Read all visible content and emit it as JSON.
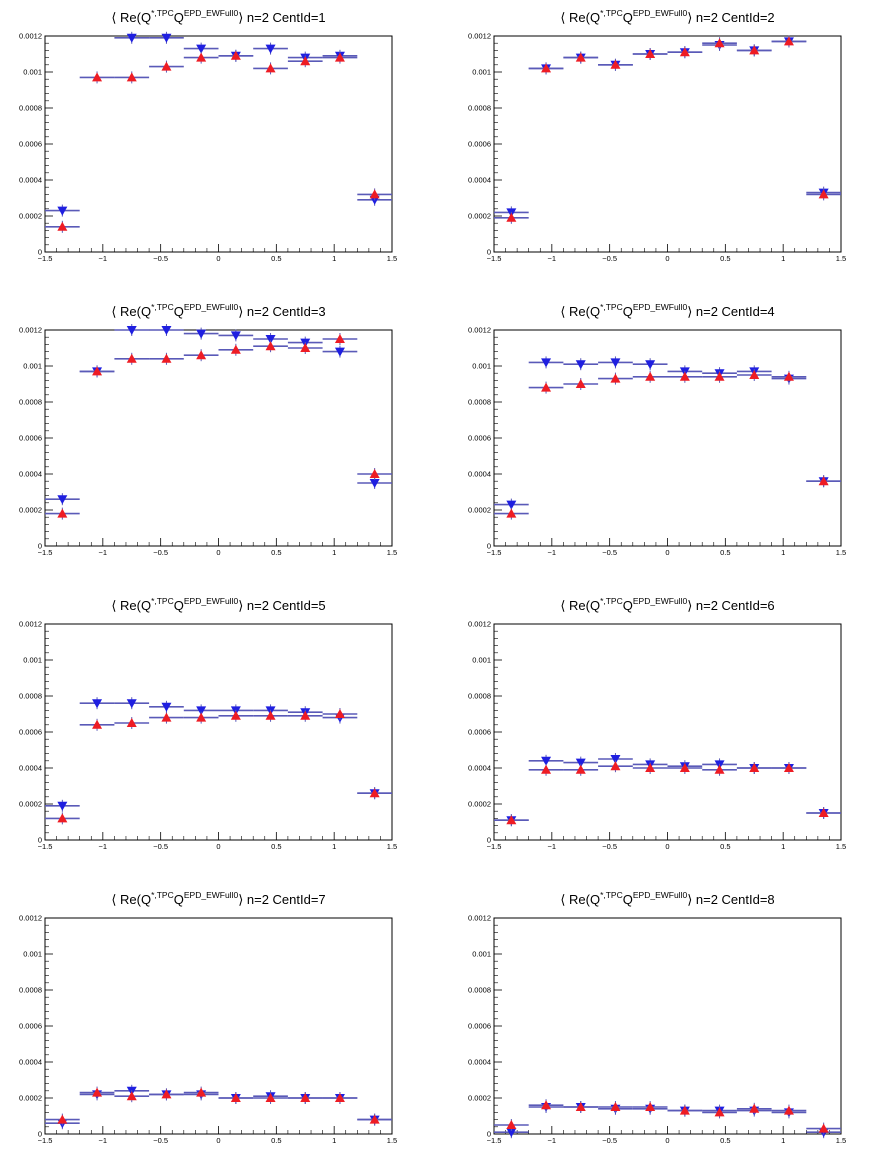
{
  "chart_data": [
    {
      "type": "scatter",
      "title": {
        "open": "⟨",
        "re": " Re(Q",
        "sup1": "*,TPC",
        "q": "Q",
        "sup2": "EPD_EWFull0",
        "close": "⟩",
        "tail": " n=2  CentId=1"
      },
      "xlim": [
        -1.5,
        1.5
      ],
      "ylim": [
        0,
        0.0012
      ],
      "grid": false,
      "x_ticks": [
        "−1.5",
        "−1",
        "−0.5",
        "0",
        "0.5",
        "1",
        "1.5"
      ],
      "y_ticks": [
        "0",
        "0.0002",
        "0.0004",
        "0.0006",
        "0.0008",
        "0.001",
        "0.0012"
      ],
      "x": [
        -1.35,
        -1.05,
        -0.75,
        -0.45,
        -0.15,
        0.15,
        0.45,
        0.75,
        1.05,
        1.35
      ],
      "series": [
        {
          "marker": "triangle-down",
          "color": "#1f1fe0",
          "values": [
            0.00023,
            null,
            0.00119,
            0.00119,
            0.00113,
            0.00109,
            0.00113,
            0.00108,
            0.00109,
            0.00029
          ]
        },
        {
          "marker": "triangle-up",
          "color": "#ee1c24",
          "values": [
            0.00014,
            0.00097,
            0.00097,
            0.00103,
            0.00108,
            0.00109,
            0.00102,
            0.00106,
            0.00108,
            0.00032
          ]
        }
      ]
    },
    {
      "type": "scatter",
      "title": {
        "open": "⟨",
        "re": " Re(Q",
        "sup1": "*,TPC",
        "q": "Q",
        "sup2": "EPD_EWFull0",
        "close": "⟩",
        "tail": " n=2  CentId=2"
      },
      "xlim": [
        -1.5,
        1.5
      ],
      "ylim": [
        0,
        0.0012
      ],
      "grid": false,
      "x_ticks": [
        "−1.5",
        "−1",
        "−0.5",
        "0",
        "0.5",
        "1",
        "1.5"
      ],
      "y_ticks": [
        "0",
        "0.0002",
        "0.0004",
        "0.0006",
        "0.0008",
        "0.001",
        "0.0012"
      ],
      "x": [
        -1.35,
        -1.05,
        -0.75,
        -0.45,
        -0.15,
        0.15,
        0.45,
        0.75,
        1.05,
        1.35
      ],
      "series": [
        {
          "marker": "triangle-down",
          "color": "#1f1fe0",
          "values": [
            0.00022,
            0.00102,
            0.00108,
            0.00104,
            0.0011,
            0.00111,
            0.00115,
            0.00112,
            0.00117,
            0.00033
          ]
        },
        {
          "marker": "triangle-up",
          "color": "#ee1c24",
          "values": [
            0.00019,
            0.00102,
            0.00108,
            0.00104,
            0.0011,
            0.00111,
            0.00116,
            0.00112,
            0.00117,
            0.00032
          ]
        }
      ]
    },
    {
      "type": "scatter",
      "title": {
        "open": "⟨",
        "re": " Re(Q",
        "sup1": "*,TPC",
        "q": "Q",
        "sup2": "EPD_EWFull0",
        "close": "⟩",
        "tail": " n=2  CentId=3"
      },
      "xlim": [
        -1.5,
        1.5
      ],
      "ylim": [
        0,
        0.0012
      ],
      "grid": false,
      "x_ticks": [
        "−1.5",
        "−1",
        "−0.5",
        "0",
        "0.5",
        "1",
        "1.5"
      ],
      "y_ticks": [
        "0",
        "0.0002",
        "0.0004",
        "0.0006",
        "0.0008",
        "0.001",
        "0.0012"
      ],
      "x": [
        -1.35,
        -1.05,
        -0.75,
        -0.45,
        -0.15,
        0.15,
        0.45,
        0.75,
        1.05,
        1.35
      ],
      "series": [
        {
          "marker": "triangle-down",
          "color": "#1f1fe0",
          "values": [
            0.00026,
            0.00097,
            0.0012,
            0.0012,
            0.00118,
            0.00117,
            0.00115,
            0.00113,
            0.00108,
            0.00035
          ]
        },
        {
          "marker": "triangle-up",
          "color": "#ee1c24",
          "values": [
            0.00018,
            0.00097,
            0.00104,
            0.00104,
            0.00106,
            0.00109,
            0.00111,
            0.0011,
            0.00115,
            0.0004
          ]
        }
      ]
    },
    {
      "type": "scatter",
      "title": {
        "open": "⟨",
        "re": " Re(Q",
        "sup1": "*,TPC",
        "q": "Q",
        "sup2": "EPD_EWFull0",
        "close": "⟩",
        "tail": " n=2  CentId=4"
      },
      "xlim": [
        -1.5,
        1.5
      ],
      "ylim": [
        0,
        0.0012
      ],
      "grid": false,
      "x_ticks": [
        "−1.5",
        "−1",
        "−0.5",
        "0",
        "0.5",
        "1",
        "1.5"
      ],
      "y_ticks": [
        "0",
        "0.0002",
        "0.0004",
        "0.0006",
        "0.0008",
        "0.001",
        "0.0012"
      ],
      "x": [
        -1.35,
        -1.05,
        -0.75,
        -0.45,
        -0.15,
        0.15,
        0.45,
        0.75,
        1.05,
        1.35
      ],
      "series": [
        {
          "marker": "triangle-down",
          "color": "#1f1fe0",
          "values": [
            0.00023,
            0.00102,
            0.00101,
            0.00102,
            0.00101,
            0.00097,
            0.00096,
            0.00097,
            0.00093,
            0.00036
          ]
        },
        {
          "marker": "triangle-up",
          "color": "#ee1c24",
          "values": [
            0.00018,
            0.00088,
            0.0009,
            0.00093,
            0.00094,
            0.00094,
            0.00094,
            0.00095,
            0.00094,
            0.00036
          ]
        }
      ]
    },
    {
      "type": "scatter",
      "title": {
        "open": "⟨",
        "re": " Re(Q",
        "sup1": "*,TPC",
        "q": "Q",
        "sup2": "EPD_EWFull0",
        "close": "⟩",
        "tail": " n=2  CentId=5"
      },
      "xlim": [
        -1.5,
        1.5
      ],
      "ylim": [
        0,
        0.0012
      ],
      "grid": false,
      "x_ticks": [
        "−1.5",
        "−1",
        "−0.5",
        "0",
        "0.5",
        "1",
        "1.5"
      ],
      "y_ticks": [
        "0",
        "0.0002",
        "0.0004",
        "0.0006",
        "0.0008",
        "0.001",
        "0.0012"
      ],
      "x": [
        -1.35,
        -1.05,
        -0.75,
        -0.45,
        -0.15,
        0.15,
        0.45,
        0.75,
        1.05,
        1.35
      ],
      "series": [
        {
          "marker": "triangle-down",
          "color": "#1f1fe0",
          "values": [
            0.00019,
            0.00076,
            0.00076,
            0.00074,
            0.00072,
            0.00072,
            0.00072,
            0.00071,
            0.00068,
            0.00026
          ]
        },
        {
          "marker": "triangle-up",
          "color": "#ee1c24",
          "values": [
            0.00012,
            0.00064,
            0.00065,
            0.00068,
            0.00068,
            0.00069,
            0.00069,
            0.00069,
            0.0007,
            0.00026
          ]
        }
      ]
    },
    {
      "type": "scatter",
      "title": {
        "open": "⟨",
        "re": " Re(Q",
        "sup1": "*,TPC",
        "q": "Q",
        "sup2": "EPD_EWFull0",
        "close": "⟩",
        "tail": " n=2  CentId=6"
      },
      "xlim": [
        -1.5,
        1.5
      ],
      "ylim": [
        0,
        0.0012
      ],
      "grid": false,
      "x_ticks": [
        "−1.5",
        "−1",
        "−0.5",
        "0",
        "0.5",
        "1",
        "1.5"
      ],
      "y_ticks": [
        "0",
        "0.0002",
        "0.0004",
        "0.0006",
        "0.0008",
        "0.001",
        "0.0012"
      ],
      "x": [
        -1.35,
        -1.05,
        -0.75,
        -0.45,
        -0.15,
        0.15,
        0.45,
        0.75,
        1.05,
        1.35
      ],
      "series": [
        {
          "marker": "triangle-down",
          "color": "#1f1fe0",
          "values": [
            0.00011,
            0.00044,
            0.00043,
            0.00045,
            0.00042,
            0.00041,
            0.00042,
            0.0004,
            0.0004,
            0.00015
          ]
        },
        {
          "marker": "triangle-up",
          "color": "#ee1c24",
          "values": [
            0.00011,
            0.00039,
            0.00039,
            0.00041,
            0.0004,
            0.0004,
            0.00039,
            0.0004,
            0.0004,
            0.00015
          ]
        }
      ]
    },
    {
      "type": "scatter",
      "title": {
        "open": "⟨",
        "re": " Re(Q",
        "sup1": "*,TPC",
        "q": "Q",
        "sup2": "EPD_EWFull0",
        "close": "⟩",
        "tail": " n=2  CentId=7"
      },
      "xlim": [
        -1.5,
        1.5
      ],
      "ylim": [
        0,
        0.0012
      ],
      "grid": false,
      "x_ticks": [
        "−1.5",
        "−1",
        "−0.5",
        "0",
        "0.5",
        "1",
        "1.5"
      ],
      "y_ticks": [
        "0",
        "0.0002",
        "0.0004",
        "0.0006",
        "0.0008",
        "0.001",
        "0.0012"
      ],
      "x": [
        -1.35,
        -1.05,
        -0.75,
        -0.45,
        -0.15,
        0.15,
        0.45,
        0.75,
        1.05,
        1.35
      ],
      "series": [
        {
          "marker": "triangle-down",
          "color": "#1f1fe0",
          "values": [
            6e-05,
            0.00022,
            0.00024,
            0.00022,
            0.00022,
            0.0002,
            0.00021,
            0.0002,
            0.0002,
            8e-05
          ]
        },
        {
          "marker": "triangle-up",
          "color": "#ee1c24",
          "values": [
            8e-05,
            0.00023,
            0.00021,
            0.00022,
            0.00023,
            0.0002,
            0.0002,
            0.0002,
            0.0002,
            8e-05
          ]
        }
      ]
    },
    {
      "type": "scatter",
      "title": {
        "open": "⟨",
        "re": " Re(Q",
        "sup1": "*,TPC",
        "q": "Q",
        "sup2": "EPD_EWFull0",
        "close": "⟩",
        "tail": " n=2  CentId=8"
      },
      "xlim": [
        -1.5,
        1.5
      ],
      "ylim": [
        0,
        0.0012
      ],
      "grid": false,
      "x_ticks": [
        "−1.5",
        "−1",
        "−0.5",
        "0",
        "0.5",
        "1",
        "1.5"
      ],
      "y_ticks": [
        "0",
        "0.0002",
        "0.0004",
        "0.0006",
        "0.0008",
        "0.001",
        "0.0012"
      ],
      "x": [
        -1.35,
        -1.05,
        -0.75,
        -0.45,
        -0.15,
        0.15,
        0.45,
        0.75,
        1.05,
        1.35
      ],
      "series": [
        {
          "marker": "triangle-down",
          "color": "#1f1fe0",
          "values": [
            1e-05,
            0.00015,
            0.00015,
            0.00014,
            0.00014,
            0.00013,
            0.00013,
            0.00013,
            0.00012,
            1e-05
          ]
        },
        {
          "marker": "triangle-up",
          "color": "#ee1c24",
          "values": [
            5e-05,
            0.00016,
            0.00015,
            0.00015,
            0.00015,
            0.00013,
            0.00012,
            0.00014,
            0.00013,
            3e-05
          ]
        }
      ]
    }
  ]
}
